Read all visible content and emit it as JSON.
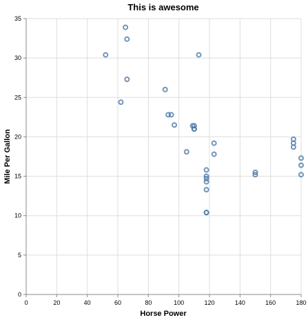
{
  "chart_data": {
    "type": "scatter",
    "title": "This is awesome",
    "xlabel": "Horse Power",
    "ylabel": "Mile Per Gallon",
    "xlim": [
      0,
      180
    ],
    "ylim": [
      0,
      35
    ],
    "x_ticks": [
      "0",
      "20",
      "40",
      "60",
      "80",
      "100",
      "120",
      "140",
      "160",
      "180"
    ],
    "y_ticks": [
      "0",
      "5",
      "10",
      "15",
      "20",
      "25",
      "30",
      "35"
    ],
    "grid": true,
    "point_color": "#4c78a8",
    "points": [
      {
        "x": 52,
        "y": 30.4
      },
      {
        "x": 65,
        "y": 33.9
      },
      {
        "x": 66,
        "y": 32.4
      },
      {
        "x": 66,
        "y": 27.3
      },
      {
        "x": 62,
        "y": 24.4
      },
      {
        "x": 91,
        "y": 26.0
      },
      {
        "x": 93,
        "y": 22.8
      },
      {
        "x": 95,
        "y": 22.8
      },
      {
        "x": 97,
        "y": 21.5
      },
      {
        "x": 105,
        "y": 18.1
      },
      {
        "x": 109,
        "y": 21.4
      },
      {
        "x": 110,
        "y": 21.4
      },
      {
        "x": 110,
        "y": 21.0
      },
      {
        "x": 110,
        "y": 21.0
      },
      {
        "x": 113,
        "y": 30.4
      },
      {
        "x": 123,
        "y": 19.2
      },
      {
        "x": 123,
        "y": 17.8
      },
      {
        "x": 118,
        "y": 15.8
      },
      {
        "x": 118,
        "y": 15.0
      },
      {
        "x": 118,
        "y": 14.7
      },
      {
        "x": 118,
        "y": 14.3
      },
      {
        "x": 118,
        "y": 13.3
      },
      {
        "x": 118,
        "y": 10.4
      },
      {
        "x": 118,
        "y": 10.4
      },
      {
        "x": 150,
        "y": 15.5
      },
      {
        "x": 150,
        "y": 15.2
      },
      {
        "x": 175,
        "y": 19.7
      },
      {
        "x": 175,
        "y": 19.2
      },
      {
        "x": 175,
        "y": 18.7
      },
      {
        "x": 180,
        "y": 17.3
      },
      {
        "x": 180,
        "y": 16.4
      },
      {
        "x": 180,
        "y": 15.2
      }
    ]
  }
}
